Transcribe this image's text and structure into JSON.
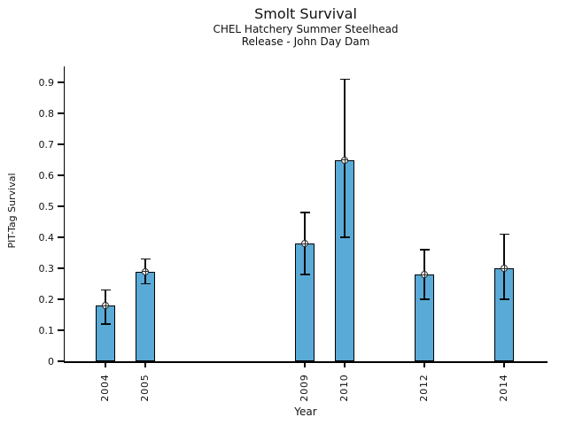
{
  "figure": {
    "title": "Smolt Survival",
    "subtitle1": "CHEL Hatchery Summer Steelhead",
    "subtitle2": "Release - John Day Dam",
    "xlabel": "Year",
    "ylabel": "PIT-Tag Survival"
  },
  "chart_data": {
    "type": "bar",
    "title": "Smolt Survival",
    "subtitle": [
      "CHEL Hatchery Summer Steelhead",
      "Release - John Day Dam"
    ],
    "xlabel": "Year",
    "ylabel": "PIT-Tag Survival",
    "categories": [
      "2004",
      "2005",
      "2009",
      "2010",
      "2012",
      "2014"
    ],
    "years": [
      2004,
      2005,
      2009,
      2010,
      2012,
      2014
    ],
    "values": [
      0.18,
      0.29,
      0.38,
      0.65,
      0.28,
      0.3
    ],
    "error_low": [
      0.12,
      0.25,
      0.28,
      0.4,
      0.2,
      0.2
    ],
    "error_high": [
      0.23,
      0.33,
      0.48,
      0.91,
      0.36,
      0.41
    ],
    "ytick_values": [
      0,
      0.1,
      0.2,
      0.3,
      0.4,
      0.5,
      0.6,
      0.7,
      0.8,
      0.9
    ],
    "ytick_labels": [
      "0",
      "0.1",
      "0.2",
      "0.3",
      "0.4",
      "0.5",
      "0.6",
      "0.7",
      "0.8",
      "0.9"
    ],
    "ylim": [
      0,
      0.95
    ],
    "x_axis_spacing": "linear-by-year",
    "grid": false,
    "legend": null,
    "marker": "open-circle-cross",
    "bar_color": "#5AAAD7",
    "bar_edge_color": "#000000",
    "error_color": "#0a0a0a",
    "background_color": "#ffffff"
  }
}
